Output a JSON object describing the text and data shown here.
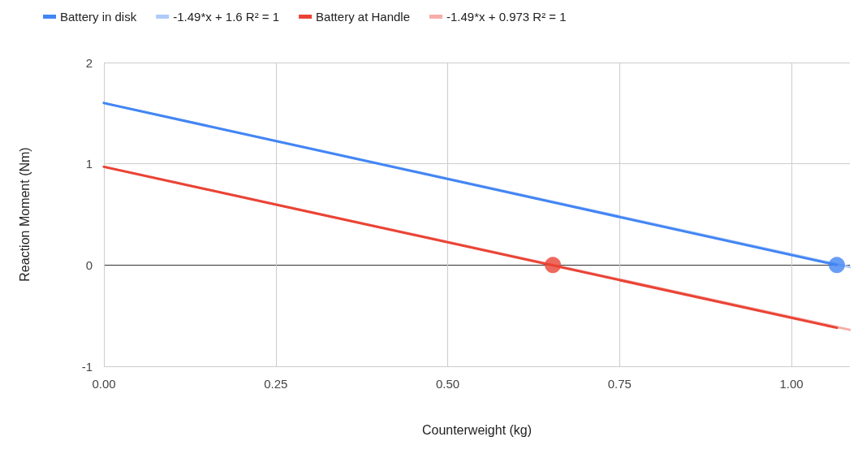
{
  "chart_data": {
    "type": "line",
    "xlabel": "Counterweight (kg)",
    "ylabel": "Reaction Moment (Nm)",
    "series": [
      {
        "name": "Battery in disk",
        "color": "#4285f4",
        "x": [
          0,
          1.066
        ],
        "values": [
          1.6,
          0
        ]
      },
      {
        "name": "-1.49*x + 1.6 R² = 1",
        "color": "#aecbfa",
        "x": [
          0,
          1.085
        ],
        "values": [
          1.6,
          -0.02
        ]
      },
      {
        "name": "Battery at Handle",
        "color": "#ea4335",
        "x": [
          0,
          1.066
        ],
        "values": [
          0.97,
          -0.62
        ]
      },
      {
        "name": "-1.49*x + 0.973 R² = 1",
        "color": "#f6aea9",
        "x": [
          0,
          1.085
        ],
        "values": [
          0.97,
          -0.64
        ]
      },
      {
        "type": "scatter",
        "color": "#4285f4",
        "x": [
          1.066
        ],
        "values": [
          0
        ]
      },
      {
        "type": "scatter",
        "color": "#ea4335",
        "x": [
          0.653
        ],
        "values": [
          0
        ]
      }
    ],
    "xlim": [
      0,
      1.085
    ],
    "xticks": [
      {
        "value": 0,
        "label": "0.00"
      },
      {
        "value": 0.25,
        "label": "0.25"
      },
      {
        "value": 0.5,
        "label": "0.50"
      },
      {
        "value": 0.75,
        "label": "0.75"
      },
      {
        "value": 1,
        "label": "1.00"
      }
    ],
    "ylim": [
      -1,
      2
    ],
    "yticks": [
      -1,
      0,
      1,
      2
    ],
    "grid": true,
    "legend": "top",
    "line_style": "solid"
  }
}
